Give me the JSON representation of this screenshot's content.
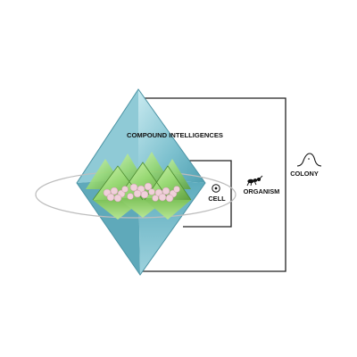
{
  "labels": {
    "compound": "COMPOUND INTELLIGENCES",
    "cell": "CELL",
    "organism": "ORGANISM",
    "colony": "COLONY"
  },
  "colors": {
    "diamond_light": "#a9dbe4",
    "diamond_mid": "#6fb9c8",
    "diamond_dark": "#3e8fa2",
    "pyramid_light": "#c6f0a0",
    "pyramid_mid": "#8fd46a",
    "pyramid_dark": "#5a9e3a",
    "cell_pink": "#f1cdd8",
    "line": "#222222",
    "ellipse": "#bfbfbf"
  },
  "icons": [
    "cell-icon",
    "organism-ant-icon",
    "colony-mound-icon"
  ]
}
